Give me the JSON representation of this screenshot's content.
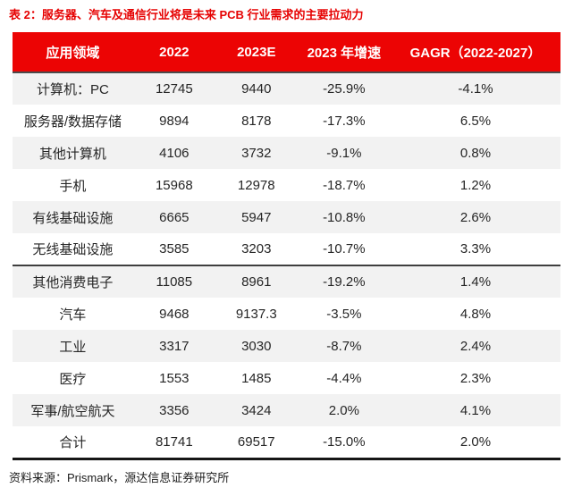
{
  "title": "表 2：服务器、汽车及通信行业将是未来 PCB 行业需求的主要拉动力",
  "source": "资料来源：Prismark，源达信息证券研究所",
  "colors": {
    "header_bg": "#ec0404",
    "header_text": "#ffffff",
    "title_text": "#e60202",
    "row_stripe": "#f2f2f2",
    "divider": "#3f3f3f",
    "body_text": "#262626"
  },
  "table": {
    "columns": [
      "应用领域",
      "2022",
      "2023E",
      "2023 年增速",
      "GAGR（2022-2027）"
    ],
    "col_widths_pct": [
      22,
      15,
      15,
      17,
      31
    ],
    "divider_before_row_index": 6,
    "rows": [
      [
        "计算机：PC",
        "12745",
        "9440",
        "-25.9%",
        "-4.1%"
      ],
      [
        "服务器/数据存储",
        "9894",
        "8178",
        "-17.3%",
        "6.5%"
      ],
      [
        "其他计算机",
        "4106",
        "3732",
        "-9.1%",
        "0.8%"
      ],
      [
        "手机",
        "15968",
        "12978",
        "-18.7%",
        "1.2%"
      ],
      [
        "有线基础设施",
        "6665",
        "5947",
        "-10.8%",
        "2.6%"
      ],
      [
        "无线基础设施",
        "3585",
        "3203",
        "-10.7%",
        "3.3%"
      ],
      [
        "其他消费电子",
        "11085",
        "8961",
        "-19.2%",
        "1.4%"
      ],
      [
        "汽车",
        "9468",
        "9137.3",
        "-3.5%",
        "4.8%"
      ],
      [
        "工业",
        "3317",
        "3030",
        "-8.7%",
        "2.4%"
      ],
      [
        "医疗",
        "1553",
        "1485",
        "-4.4%",
        "2.3%"
      ],
      [
        "军事/航空航天",
        "3356",
        "3424",
        "2.0%",
        "4.1%"
      ],
      [
        "合计",
        "81741",
        "69517",
        "-15.0%",
        "2.0%"
      ]
    ]
  }
}
